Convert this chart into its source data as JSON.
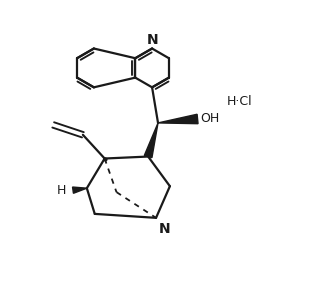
{
  "bg_color": "#ffffff",
  "line_color": "#1a1a1a",
  "line_width": 1.6,
  "figsize": [
    3.2,
    2.98
  ],
  "dpi": 100,
  "xlim": [
    0,
    8
  ],
  "ylim": [
    0,
    7.5
  ]
}
